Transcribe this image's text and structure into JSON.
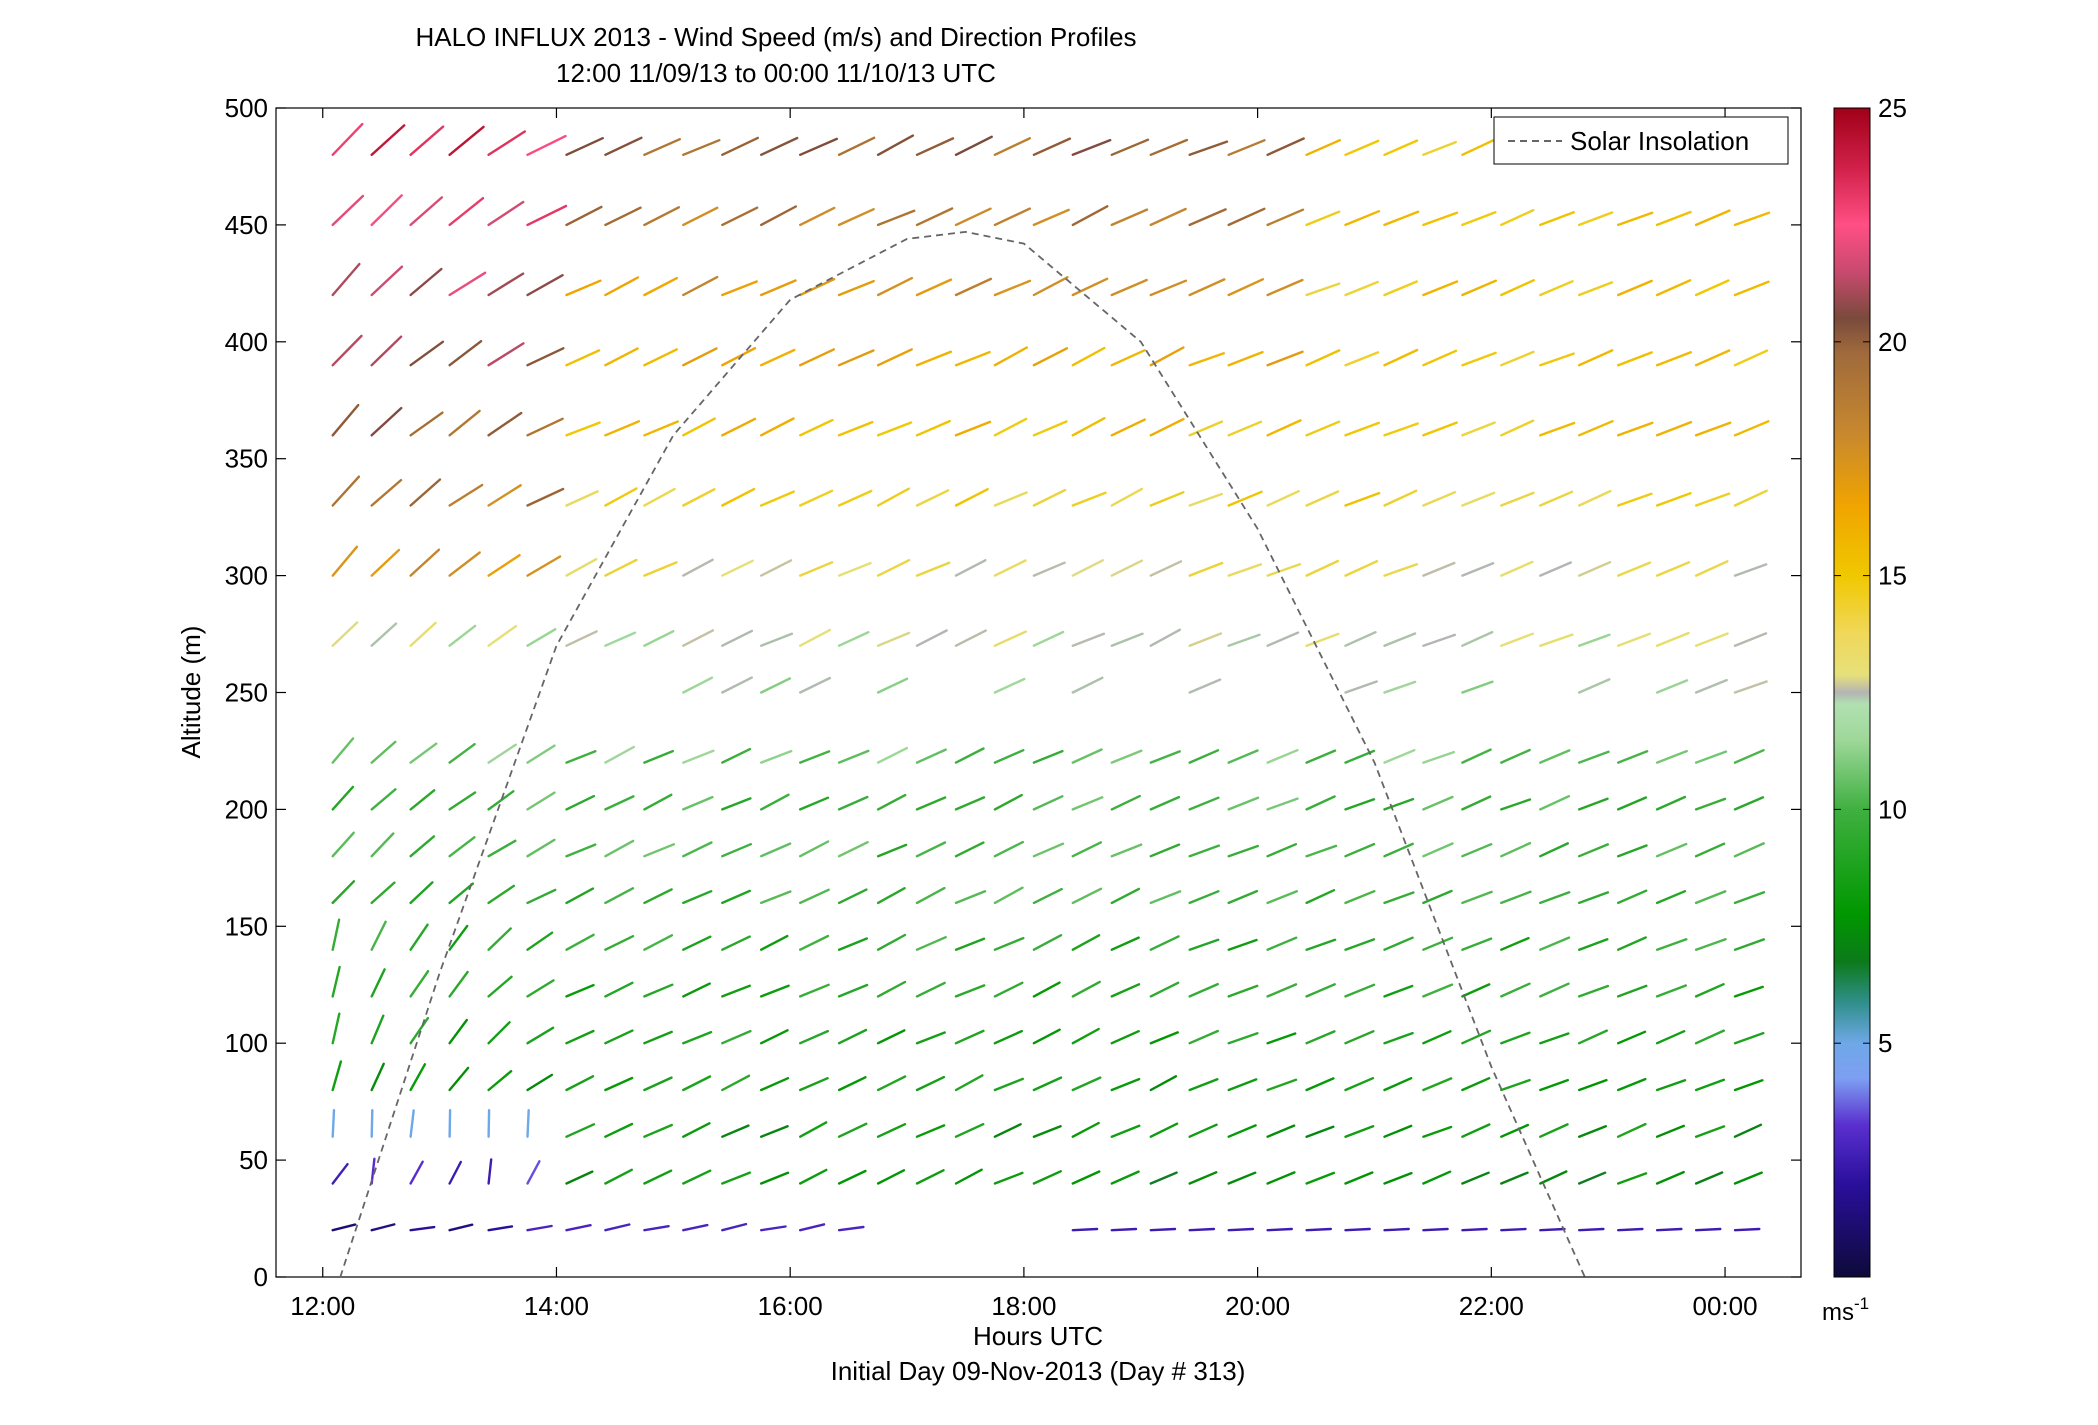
{
  "chart_data": {
    "type": "quiver",
    "title": "HALO INFLUX 2013 - Wind Speed (m/s) and Direction Profiles",
    "subtitle": "12:00 11/09/13 to 00:00 11/10/13  UTC",
    "xlabel": "Hours UTC",
    "xlabel2": "Initial Day 09-Nov-2013 (Day # 313)",
    "ylabel": "Altitude (m)",
    "xlim": [
      11.6,
      24.65
    ],
    "ylim": [
      0,
      500
    ],
    "xticks": [
      12,
      14,
      16,
      18,
      20,
      22,
      24
    ],
    "xtick_labels": [
      "12:00",
      "14:00",
      "16:00",
      "18:00",
      "20:00",
      "22:00",
      "00:00"
    ],
    "yticks": [
      0,
      50,
      100,
      150,
      200,
      250,
      300,
      350,
      400,
      450,
      500
    ],
    "ytick_labels": [
      "0",
      "50",
      "100",
      "150",
      "200",
      "250",
      "300",
      "350",
      "400",
      "450",
      "500"
    ],
    "legend": {
      "label": "Solar Insolation",
      "location": "top-right"
    },
    "colorbar": {
      "ticks": [
        5,
        10,
        15,
        20,
        25
      ],
      "tick_labels": [
        "5",
        "10",
        "15",
        "20",
        "25"
      ],
      "unit_base": "ms",
      "unit_exp": "-1",
      "range": [
        0,
        25
      ]
    },
    "solar_insolation_curve": {
      "x": [
        12.15,
        13,
        14,
        15,
        16,
        17,
        17.5,
        18,
        19,
        20,
        21,
        22,
        22.8
      ],
      "y": [
        0,
        130,
        270,
        360,
        418,
        444,
        447,
        442,
        400,
        320,
        220,
        90,
        0
      ]
    },
    "grid": false
  },
  "colors": {
    "solar_curve": "#666666",
    "axes": "#000000",
    "background": "#ffffff"
  }
}
